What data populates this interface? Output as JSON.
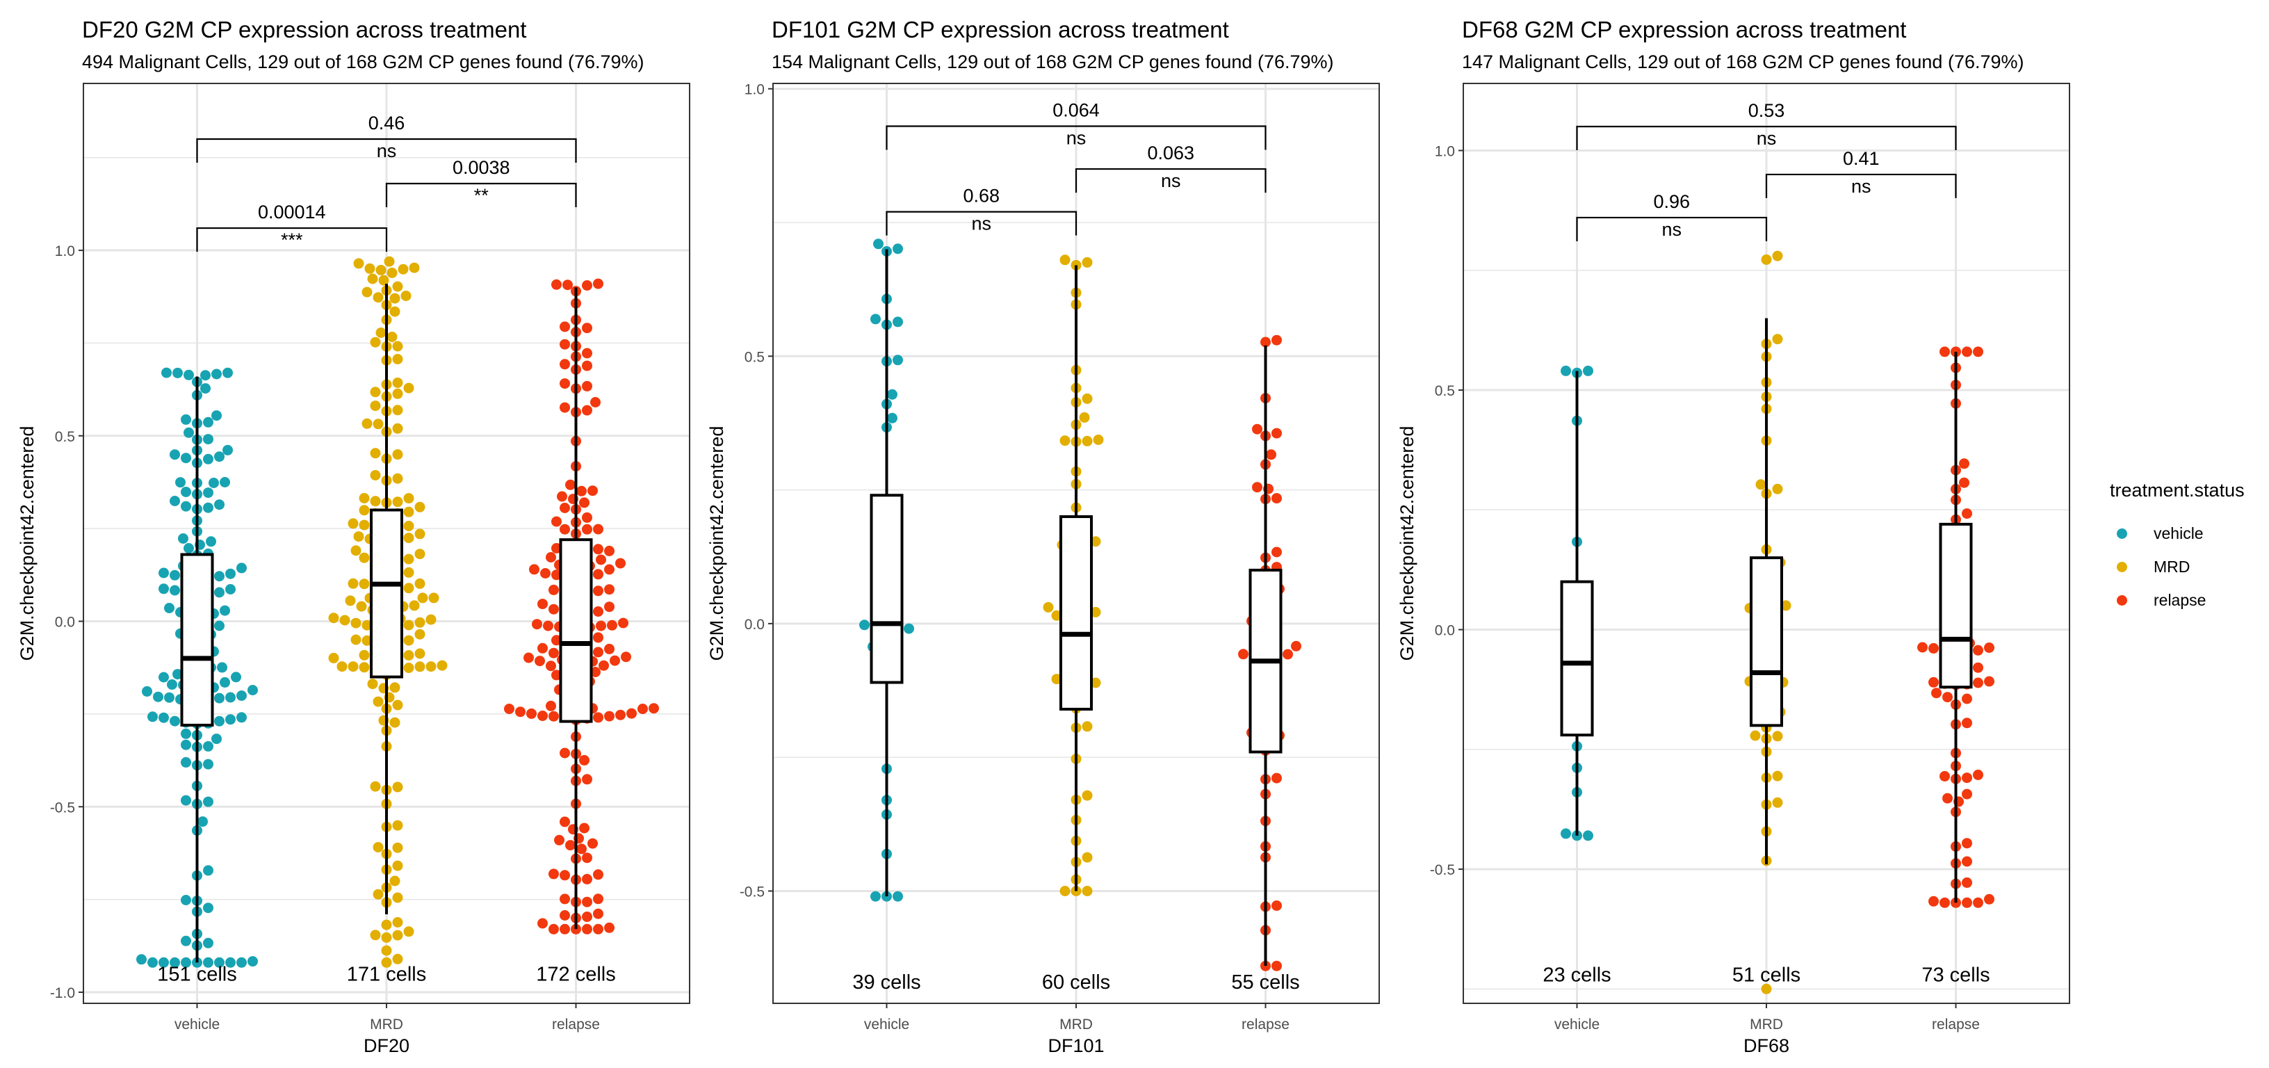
{
  "colors": {
    "vehicle": "#18A3B2",
    "MRD": "#E2AE00",
    "relapse": "#F2380E",
    "grid": "#E5E5E5",
    "panel_border": "#333333",
    "text": "#000000",
    "tick_text": "#4D4D4D"
  },
  "legend": {
    "title": "treatment.status",
    "items": [
      {
        "key": "vehicle",
        "label": "vehicle"
      },
      {
        "key": "MRD",
        "label": "MRD"
      },
      {
        "key": "relapse",
        "label": "relapse"
      }
    ]
  },
  "chart_data": [
    {
      "type": "box+beeswarm",
      "title": "DF20 G2M CP expression across treatment",
      "subtitle": "494 Malignant Cells, 129 out of 168 G2M CP genes found (76.79%)",
      "xlabel": "DF20",
      "ylabel": "G2M.checkpoint42.centered",
      "ylim": [
        -1.03,
        1.45
      ],
      "yticks": [
        -1.0,
        -0.5,
        0.0,
        0.5,
        1.0
      ],
      "ytick_labels": [
        "-1.0",
        "-0.5",
        "0.0",
        "0.5",
        "1.0"
      ],
      "categories": [
        "vehicle",
        "MRD",
        "relapse"
      ],
      "counts": [
        151,
        171,
        172
      ],
      "count_labels": [
        "151 cells",
        "171 cells",
        "172 cells"
      ],
      "box": [
        {
          "group": "vehicle",
          "whisker_low": -0.92,
          "q1": -0.28,
          "median": -0.1,
          "q3": 0.18,
          "whisker_high": 0.66,
          "min": -0.92,
          "max": 0.67
        },
        {
          "group": "MRD",
          "whisker_low": -0.79,
          "q1": -0.15,
          "median": 0.1,
          "q3": 0.3,
          "whisker_high": 0.91,
          "min": -0.92,
          "max": 0.97
        },
        {
          "group": "relapse",
          "whisker_low": -0.83,
          "q1": -0.27,
          "median": -0.06,
          "q3": 0.22,
          "whisker_high": 0.9,
          "min": -0.83,
          "max": 0.91
        }
      ],
      "comparisons": [
        {
          "groups": [
            "vehicle",
            "MRD"
          ],
          "p": "0.00014",
          "signif": "***",
          "y": 1.06
        },
        {
          "groups": [
            "MRD",
            "relapse"
          ],
          "p": "0.0038",
          "signif": "**",
          "y": 1.18
        },
        {
          "groups": [
            "vehicle",
            "relapse"
          ],
          "p": "0.46",
          "signif": "ns",
          "y": 1.3
        }
      ],
      "count_label_y": -0.95,
      "grid": true
    },
    {
      "type": "box+beeswarm",
      "title": "DF101 G2M CP expression across treatment",
      "subtitle": "154 Malignant Cells, 129 out of 168 G2M CP genes found (76.79%)",
      "xlabel": "DF101",
      "ylabel": "G2M.checkpoint42.centered",
      "ylim": [
        -0.71,
        1.01
      ],
      "yticks": [
        -0.5,
        0.0,
        0.5,
        1.0
      ],
      "ytick_labels": [
        "-0.5",
        "0.0",
        "0.5",
        "1.0"
      ],
      "categories": [
        "vehicle",
        "MRD",
        "relapse"
      ],
      "counts": [
        39,
        60,
        55
      ],
      "count_labels": [
        "39 cells",
        "60 cells",
        "55 cells"
      ],
      "box": [
        {
          "group": "vehicle",
          "whisker_low": -0.51,
          "q1": -0.11,
          "median": 0.0,
          "q3": 0.24,
          "whisker_high": 0.7,
          "min": -0.51,
          "max": 0.71
        },
        {
          "group": "MRD",
          "whisker_low": -0.5,
          "q1": -0.16,
          "median": -0.02,
          "q3": 0.2,
          "whisker_high": 0.67,
          "min": -0.5,
          "max": 0.68
        },
        {
          "group": "relapse",
          "whisker_low": -0.64,
          "q1": -0.24,
          "median": -0.07,
          "q3": 0.1,
          "whisker_high": 0.52,
          "min": -0.64,
          "max": 0.53
        }
      ],
      "comparisons": [
        {
          "groups": [
            "vehicle",
            "MRD"
          ],
          "p": "0.68",
          "signif": "ns",
          "y": 0.77
        },
        {
          "groups": [
            "MRD",
            "relapse"
          ],
          "p": "0.063",
          "signif": "ns",
          "y": 0.85
        },
        {
          "groups": [
            "vehicle",
            "relapse"
          ],
          "p": "0.064",
          "signif": "ns",
          "y": 0.93
        }
      ],
      "count_label_y": -0.67,
      "grid": true
    },
    {
      "type": "box+beeswarm",
      "title": "DF68 G2M CP expression across treatment",
      "subtitle": "147 Malignant Cells, 129 out of 168 G2M CP genes found (76.79%)",
      "xlabel": "DF68",
      "ylabel": "G2M.checkpoint42.centered",
      "ylim": [
        -0.78,
        1.14
      ],
      "yticks": [
        -0.5,
        0.0,
        0.5,
        1.0
      ],
      "ytick_labels": [
        "-0.5",
        "0.0",
        "0.5",
        "1.0"
      ],
      "categories": [
        "vehicle",
        "MRD",
        "relapse"
      ],
      "counts": [
        23,
        51,
        73
      ],
      "count_labels": [
        "23 cells",
        "51 cells",
        "73 cells"
      ],
      "box": [
        {
          "group": "vehicle",
          "whisker_low": -0.43,
          "q1": -0.22,
          "median": -0.07,
          "q3": 0.1,
          "whisker_high": 0.54,
          "min": -0.43,
          "max": 0.54
        },
        {
          "group": "MRD",
          "whisker_low": -0.49,
          "q1": -0.2,
          "median": -0.09,
          "q3": 0.15,
          "whisker_high": 0.65,
          "min": -0.75,
          "max": 0.78
        },
        {
          "group": "relapse",
          "whisker_low": -0.57,
          "q1": -0.12,
          "median": -0.02,
          "q3": 0.22,
          "whisker_high": 0.58,
          "min": -0.57,
          "max": 0.58
        }
      ],
      "comparisons": [
        {
          "groups": [
            "vehicle",
            "MRD"
          ],
          "p": "0.96",
          "signif": "ns",
          "y": 0.86
        },
        {
          "groups": [
            "MRD",
            "relapse"
          ],
          "p": "0.41",
          "signif": "ns",
          "y": 0.95
        },
        {
          "groups": [
            "vehicle",
            "relapse"
          ],
          "p": "0.53",
          "signif": "ns",
          "y": 1.05
        }
      ],
      "count_label_y": -0.72,
      "grid": true
    }
  ]
}
